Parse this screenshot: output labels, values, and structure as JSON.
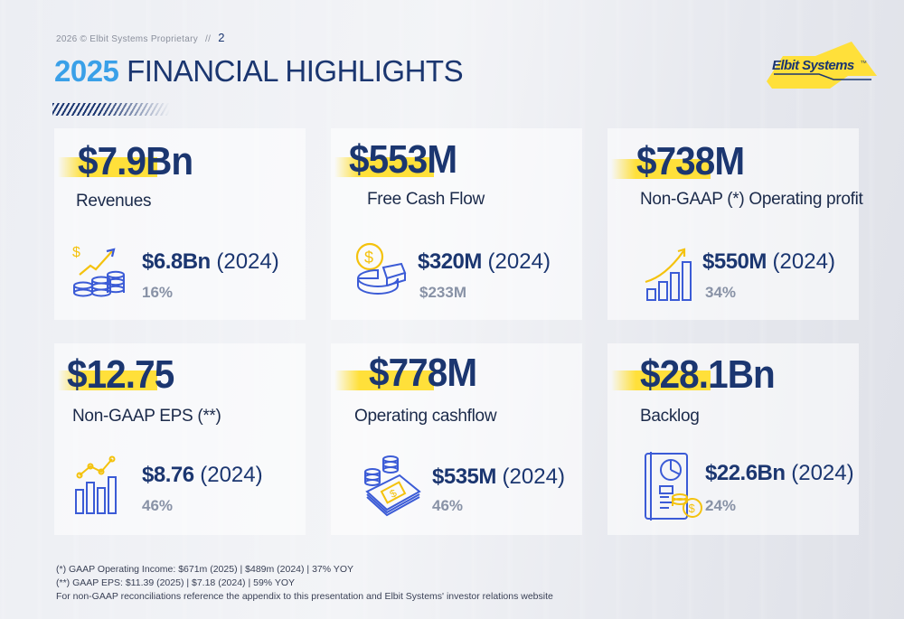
{
  "header": {
    "copyright": "2026 © Elbit Systems Proprietary",
    "separator": "//",
    "page_number": "2",
    "title_year": "2025",
    "title_rest": " FINANCIAL HIGHLIGHTS"
  },
  "logo": {
    "text": "Elbit Systems",
    "tm": "TM"
  },
  "colors": {
    "navy": "#1b3670",
    "accent_blue": "#3aa0e8",
    "highlight_yellow": "#ffe03a",
    "icon_blue": "#3b5bd6",
    "icon_yellow": "#f4c20d",
    "muted": "#8892a6"
  },
  "cards": [
    {
      "value": "$7.9Bn",
      "label": "Revenues",
      "prev_value": "$6.8Bn",
      "prev_year": " (2024)",
      "change": "16%",
      "icon": "revenue-growth-icon"
    },
    {
      "value": "$553M",
      "label": "Free Cash Flow",
      "prev_value": "$320M",
      "prev_year": " (2024)",
      "change": "$233M",
      "icon": "coin-pie-icon"
    },
    {
      "value": "$738M",
      "label": "Non-GAAP (*) Operating profit",
      "prev_value": "$550M",
      "prev_year": " (2024)",
      "change": "34%",
      "icon": "bar-growth-icon"
    },
    {
      "value": "$12.75",
      "label": "Non-GAAP EPS (**)",
      "prev_value": "$8.76",
      "prev_year": " (2024)",
      "change": "46%",
      "icon": "eps-chart-icon"
    },
    {
      "value": "$778M",
      "label": "Operating cashflow",
      "prev_value": "$535M",
      "prev_year": " (2024)",
      "change": "46%",
      "icon": "cash-coins-icon"
    },
    {
      "value": "$28.1Bn",
      "label": "Backlog",
      "prev_value": "$22.6Bn",
      "prev_year": " (2024)",
      "change": "24%",
      "icon": "report-coins-icon"
    }
  ],
  "footnotes": [
    "(*)  GAAP Operating Income: $671m (2025) | $489m (2024) | 37% YOY",
    "(**) GAAP EPS: $11.39 (2025) | $7.18 (2024) | 59% YOY",
    "For non-GAAP reconciliations reference the appendix to this presentation and Elbit Systems' investor relations website"
  ]
}
